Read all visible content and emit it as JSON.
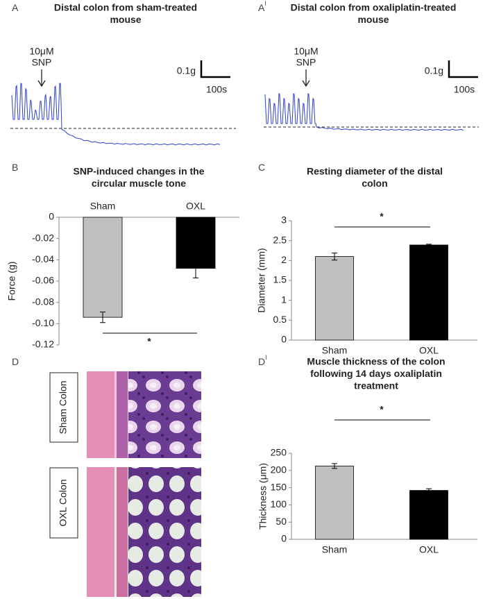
{
  "chart_data": [
    {
      "type": "trace",
      "panel": "A",
      "title": [
        "Distal colon from sham-treated",
        "mouse"
      ],
      "drug": [
        "10μM",
        "SNP"
      ],
      "scale_force": "0.1g",
      "scale_time": "100s"
    },
    {
      "type": "trace",
      "panel": "A",
      "panel_sup": "I",
      "title": [
        "Distal colon from oxaliplatin-treated",
        "mouse"
      ],
      "drug": [
        "10μM",
        "SNP"
      ],
      "scale_force": "0.1g",
      "scale_time": "100s"
    },
    {
      "type": "bar",
      "panel": "B",
      "title": [
        "SNP-induced changes in the",
        "circular muscle tone"
      ],
      "categories": [
        "Sham",
        "OXL"
      ],
      "values": [
        -0.094,
        -0.048
      ],
      "errors": [
        0.005,
        0.009
      ],
      "colors": [
        "#bfbfbf",
        "#000000"
      ],
      "ylabel": "Force (g)",
      "ylim": [
        -0.12,
        0
      ],
      "yticks": [
        -0.12,
        {
          "value": -0.1,
          "label": "-0.10"
        },
        -0.08,
        -0.06,
        -0.04,
        -0.02,
        0
      ],
      "annotation": "*"
    },
    {
      "type": "bar",
      "panel": "C",
      "title": [
        "Resting diameter of the distal",
        "colon"
      ],
      "categories": [
        "Sham",
        "OXL"
      ],
      "values": [
        2.1,
        2.39
      ],
      "errors": [
        0.09,
        0.02
      ],
      "colors": [
        "#bfbfbf",
        "#000000"
      ],
      "ylabel": "Diameter (mm)",
      "ylim": [
        0,
        3
      ],
      "yticks": [
        0,
        0.5,
        1,
        1.5,
        2,
        2.5,
        3
      ],
      "annotation": "*"
    },
    {
      "type": "image",
      "panel": "D",
      "labels": [
        "Sham Colon",
        "OXL Colon"
      ]
    },
    {
      "type": "bar",
      "panel": "D",
      "panel_sup": "I",
      "title": [
        "Muscle thickness of the colon",
        "following 14 days oxaliplatin",
        "treatment"
      ],
      "categories": [
        "Sham",
        "OXL"
      ],
      "values": [
        213,
        142
      ],
      "errors": [
        7,
        5
      ],
      "colors": [
        "#bfbfbf",
        "#000000"
      ],
      "ylabel": "Thickness (μm)",
      "ylim": [
        0,
        250
      ],
      "yticks": [
        0,
        50,
        100,
        150,
        200,
        250
      ],
      "annotation": "*"
    }
  ]
}
